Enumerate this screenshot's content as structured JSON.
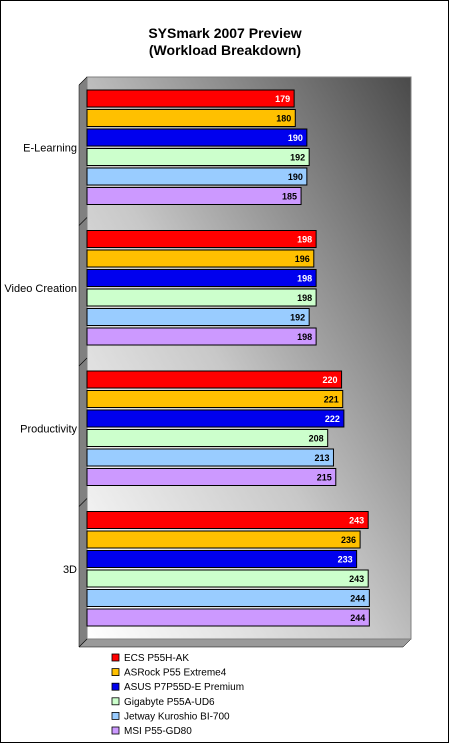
{
  "chart_data": {
    "type": "bar",
    "orientation": "horizontal",
    "title": "SYSmark 2007 Preview",
    "subtitle": "(Workload Breakdown)",
    "categories": [
      "E-Learning",
      "Video Creation",
      "Productivity",
      "3D"
    ],
    "series": [
      {
        "name": "ECS P55H-AK",
        "color": "#ff0000",
        "label_color": "#ffffff",
        "values": [
          179,
          198,
          220,
          243
        ]
      },
      {
        "name": "ASRock P55 Extreme4",
        "color": "#ffc000",
        "label_color": "#000000",
        "values": [
          180,
          196,
          221,
          236
        ]
      },
      {
        "name": "ASUS P7P55D-E Premium",
        "color": "#0000ee",
        "label_color": "#ffffff",
        "values": [
          190,
          198,
          222,
          233
        ]
      },
      {
        "name": "Gigabyte P55A-UD6",
        "color": "#ccffcc",
        "label_color": "#000000",
        "values": [
          192,
          198,
          208,
          243
        ]
      },
      {
        "name": "Jetway Kuroshio BI-700",
        "color": "#99ccff",
        "label_color": "#000000",
        "values": [
          190,
          192,
          213,
          244
        ]
      },
      {
        "name": "MSI P55-GD80",
        "color": "#cc99ff",
        "label_color": "#000000",
        "values": [
          185,
          198,
          215,
          244
        ]
      }
    ],
    "xlim": [
      0,
      280
    ],
    "grid": false,
    "legend_position": "bottom"
  }
}
